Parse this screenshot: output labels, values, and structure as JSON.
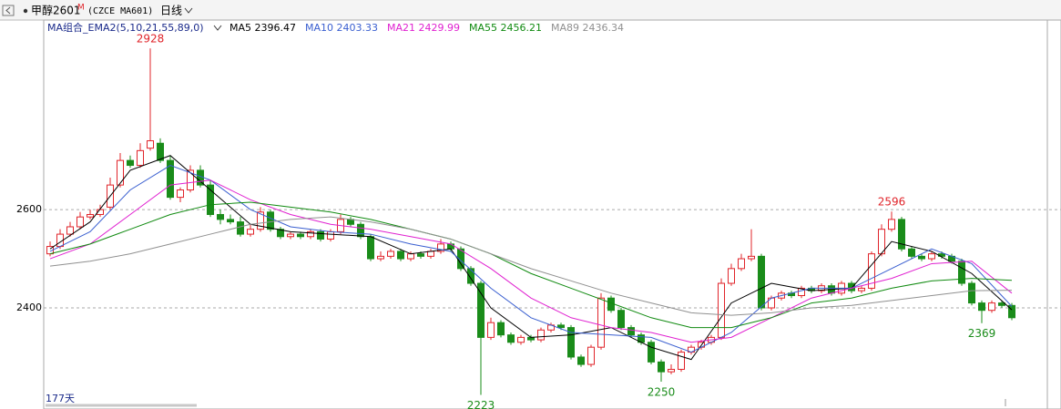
{
  "chart_data": {
    "type": "candlestick",
    "title": "甲醇2601",
    "title_mark": "M",
    "subtitle": "(CZCE MA601)",
    "period": "日线",
    "indicator": "MA组合_EMA2(5,10,21,55,89,0)",
    "days_label": "177天",
    "up_color": "#e0242a",
    "down_color": "#1a8c1a",
    "ylim": [
      2198,
      2956
    ],
    "yticks": [
      2400,
      2600
    ],
    "grid": true,
    "open": [
      2510,
      2525,
      2550,
      2565,
      2585,
      2590,
      2605,
      2650,
      2700,
      2690,
      2725,
      2735,
      2700,
      2625,
      2640,
      2680,
      2650,
      2590,
      2580,
      2575,
      2550,
      2560,
      2595,
      2560,
      2545,
      2550,
      2545,
      2555,
      2540,
      2555,
      2580,
      2570,
      2545,
      2500,
      2505,
      2515,
      2500,
      2510,
      2505,
      2515,
      2530,
      2520,
      2480,
      2450,
      2340,
      2370,
      2345,
      2330,
      2340,
      2335,
      2355,
      2365,
      2360,
      2300,
      2285,
      2320,
      2420,
      2395,
      2360,
      2345,
      2330,
      2290,
      2270,
      2275,
      2310,
      2320,
      2330,
      2340,
      2450,
      2480,
      2500,
      2505,
      2400,
      2420,
      2430,
      2425,
      2440,
      2435,
      2445,
      2430,
      2450,
      2435,
      2440,
      2510,
      2560,
      2580,
      2520,
      2505,
      2500,
      2510,
      2505,
      2495,
      2450,
      2410,
      2395,
      2410,
      2405
    ],
    "high": [
      2535,
      2560,
      2575,
      2595,
      2600,
      2610,
      2665,
      2715,
      2710,
      2735,
      2928,
      2745,
      2710,
      2645,
      2690,
      2690,
      2660,
      2600,
      2590,
      2585,
      2570,
      2605,
      2600,
      2565,
      2555,
      2555,
      2560,
      2560,
      2560,
      2590,
      2585,
      2575,
      2550,
      2515,
      2520,
      2520,
      2515,
      2515,
      2520,
      2540,
      2535,
      2525,
      2485,
      2455,
      2380,
      2375,
      2350,
      2345,
      2345,
      2360,
      2370,
      2370,
      2365,
      2305,
      2325,
      2430,
      2425,
      2400,
      2365,
      2350,
      2335,
      2295,
      2285,
      2315,
      2325,
      2335,
      2345,
      2460,
      2490,
      2510,
      2560,
      2510,
      2425,
      2435,
      2435,
      2445,
      2445,
      2450,
      2450,
      2455,
      2455,
      2445,
      2515,
      2570,
      2596,
      2585,
      2525,
      2510,
      2515,
      2515,
      2510,
      2500,
      2455,
      2415,
      2415,
      2415,
      2410
    ],
    "low": [
      2505,
      2520,
      2545,
      2560,
      2580,
      2585,
      2600,
      2645,
      2685,
      2685,
      2720,
      2695,
      2620,
      2615,
      2635,
      2645,
      2585,
      2570,
      2570,
      2545,
      2545,
      2555,
      2555,
      2540,
      2540,
      2540,
      2540,
      2535,
      2535,
      2550,
      2565,
      2540,
      2495,
      2495,
      2500,
      2495,
      2495,
      2500,
      2500,
      2510,
      2515,
      2475,
      2445,
      2223,
      2335,
      2340,
      2325,
      2325,
      2330,
      2330,
      2350,
      2355,
      2295,
      2280,
      2280,
      2315,
      2390,
      2355,
      2340,
      2325,
      2285,
      2250,
      2265,
      2270,
      2305,
      2315,
      2325,
      2335,
      2445,
      2475,
      2495,
      2395,
      2395,
      2415,
      2420,
      2420,
      2430,
      2430,
      2425,
      2425,
      2430,
      2430,
      2435,
      2505,
      2555,
      2515,
      2500,
      2495,
      2495,
      2500,
      2490,
      2445,
      2405,
      2369,
      2390,
      2400,
      2375
    ],
    "close": [
      2525,
      2550,
      2565,
      2585,
      2590,
      2600,
      2650,
      2700,
      2690,
      2720,
      2740,
      2700,
      2625,
      2640,
      2680,
      2650,
      2590,
      2580,
      2575,
      2550,
      2560,
      2595,
      2560,
      2545,
      2550,
      2545,
      2555,
      2540,
      2555,
      2580,
      2570,
      2545,
      2500,
      2505,
      2515,
      2500,
      2510,
      2505,
      2515,
      2530,
      2520,
      2480,
      2450,
      2340,
      2370,
      2345,
      2330,
      2340,
      2335,
      2355,
      2365,
      2360,
      2300,
      2285,
      2320,
      2420,
      2395,
      2360,
      2345,
      2330,
      2290,
      2270,
      2275,
      2310,
      2320,
      2330,
      2340,
      2450,
      2480,
      2500,
      2505,
      2400,
      2420,
      2430,
      2425,
      2440,
      2435,
      2445,
      2430,
      2450,
      2435,
      2440,
      2510,
      2560,
      2580,
      2520,
      2505,
      2500,
      2510,
      2505,
      2495,
      2450,
      2410,
      2395,
      2410,
      2405,
      2380
    ],
    "annotations": [
      2928,
      2223,
      2250,
      2596,
      2369
    ],
    "ma_x": [
      0,
      4,
      8,
      12,
      16,
      20,
      24,
      28,
      32,
      36,
      40,
      44,
      48,
      52,
      56,
      60,
      64,
      68,
      72,
      76,
      80,
      84,
      88,
      92,
      96
    ],
    "series": [
      {
        "name": "MA5 2396.47",
        "color": "#000000",
        "values": [
          2520,
          2575,
          2680,
          2710,
          2640,
          2570,
          2555,
          2550,
          2545,
          2510,
          2520,
          2400,
          2340,
          2345,
          2360,
          2320,
          2295,
          2410,
          2450,
          2435,
          2440,
          2535,
          2515,
          2470,
          2396
        ]
      },
      {
        "name": "MA10 2403.33",
        "color": "#3a5fd0",
        "values": [
          2515,
          2555,
          2640,
          2690,
          2660,
          2600,
          2565,
          2555,
          2550,
          2530,
          2515,
          2440,
          2380,
          2350,
          2345,
          2340,
          2310,
          2350,
          2420,
          2440,
          2440,
          2480,
          2520,
          2490,
          2403
        ]
      },
      {
        "name": "MA21 2429.99",
        "color": "#e020d0",
        "values": [
          2500,
          2530,
          2590,
          2650,
          2660,
          2620,
          2590,
          2570,
          2560,
          2545,
          2530,
          2480,
          2420,
          2380,
          2360,
          2350,
          2330,
          2340,
          2380,
          2420,
          2440,
          2460,
          2490,
          2495,
          2430
        ]
      },
      {
        "name": "MA55 2456.21",
        "color": "#108a10",
        "values": [
          2510,
          2530,
          2560,
          2590,
          2610,
          2615,
          2605,
          2595,
          2580,
          2560,
          2540,
          2510,
          2470,
          2440,
          2410,
          2380,
          2360,
          2360,
          2380,
          2410,
          2420,
          2440,
          2455,
          2460,
          2456
        ]
      },
      {
        "name": "MA89 2436.34",
        "color": "#909090",
        "values": [
          2485,
          2495,
          2510,
          2530,
          2550,
          2570,
          2580,
          2585,
          2575,
          2560,
          2540,
          2510,
          2480,
          2455,
          2430,
          2410,
          2390,
          2385,
          2390,
          2400,
          2405,
          2415,
          2425,
          2435,
          2436
        ]
      }
    ]
  }
}
